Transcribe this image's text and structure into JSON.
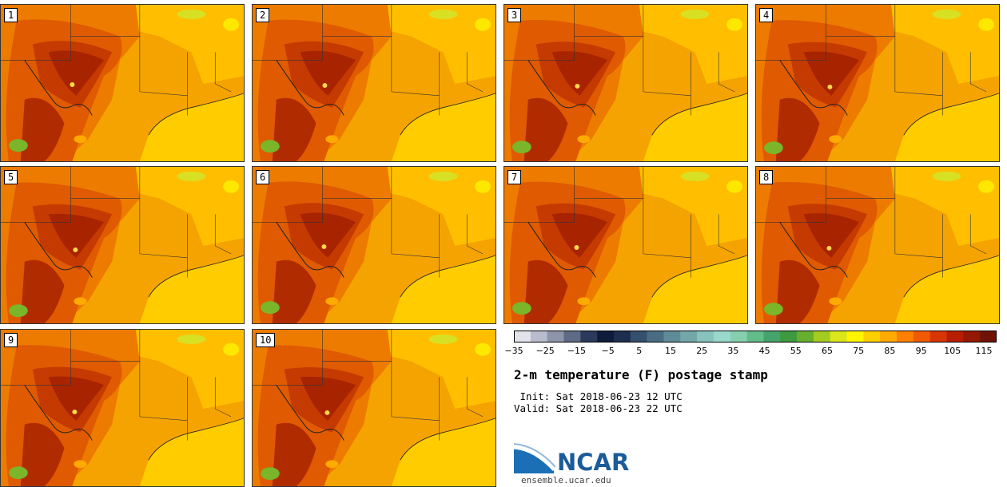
{
  "panels": [
    {
      "label": "1"
    },
    {
      "label": "2"
    },
    {
      "label": "3"
    },
    {
      "label": "4"
    },
    {
      "label": "5"
    },
    {
      "label": "6"
    },
    {
      "label": "7"
    },
    {
      "label": "8"
    },
    {
      "label": "9"
    },
    {
      "label": "10"
    }
  ],
  "colorbar": {
    "colors": [
      "#e3e3ec",
      "#b8bccd",
      "#8e95aa",
      "#5f6b86",
      "#2b3a5c",
      "#0f1b3a",
      "#1d2e4e",
      "#34506c",
      "#4a6d83",
      "#5f8a97",
      "#73a7aa",
      "#88c2bd",
      "#9ad8cc",
      "#85cfae",
      "#63bd8b",
      "#45a46b",
      "#3d9a3e",
      "#66b02e",
      "#a4cc1f",
      "#dce41a",
      "#fff500",
      "#ffd000",
      "#ffaa00",
      "#ff8000",
      "#f05a00",
      "#d83500",
      "#b81d00",
      "#951800",
      "#6f1208"
    ],
    "tick_labels": [
      "−35",
      "−25",
      "−15",
      "−5",
      "5",
      "15",
      "25",
      "35",
      "45",
      "55",
      "65",
      "75",
      "85",
      "95",
      "105",
      "115"
    ]
  },
  "title": "2-m temperature (F) postage stamp",
  "init": " Init: Sat 2018-06-23 12 UTC",
  "valid": "Valid: Sat 2018-06-23 22 UTC",
  "logo_text": "NCAR",
  "site": "ensemble.ucar.edu"
}
